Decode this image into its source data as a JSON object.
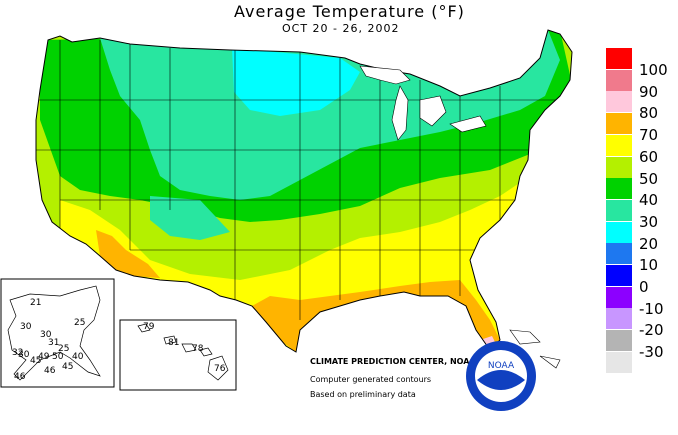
{
  "map": {
    "title": "Average Temperature (°F)",
    "subtitle": "OCT 20 - 26, 2002",
    "legend": [
      {
        "label": "100",
        "color": "#ff0000"
      },
      {
        "label": "90",
        "color": "#f07a8c"
      },
      {
        "label": "80",
        "color": "#ffc8dc"
      },
      {
        "label": "70",
        "color": "#ffb400"
      },
      {
        "label": "60",
        "color": "#ffff00"
      },
      {
        "label": "50",
        "color": "#b4f000"
      },
      {
        "label": "40",
        "color": "#00d200"
      },
      {
        "label": "30",
        "color": "#28e6a0"
      },
      {
        "label": "20",
        "color": "#00ffff"
      },
      {
        "label": "10",
        "color": "#1e78f0"
      },
      {
        "label": "0",
        "color": "#0000ff"
      },
      {
        "label": "-10",
        "color": "#8c00ff"
      },
      {
        "label": "-20",
        "color": "#c896ff"
      },
      {
        "label": "-30",
        "color": "#b4b4b4"
      }
    ],
    "legend_extra_color": "#e6e6e6",
    "credits": [
      "CLIMATE PREDICTION CENTER, NOAA",
      "Computer generated contours",
      "Based on preliminary data"
    ],
    "alaska_labels": [
      "21",
      "30",
      "25",
      "30",
      "31",
      "32",
      "30",
      "25",
      "45",
      "40",
      "49",
      "50",
      "45",
      "46",
      "46"
    ],
    "hawaii_labels": [
      "79",
      "81",
      "78",
      "76"
    ],
    "logo_text": "NOAA"
  }
}
